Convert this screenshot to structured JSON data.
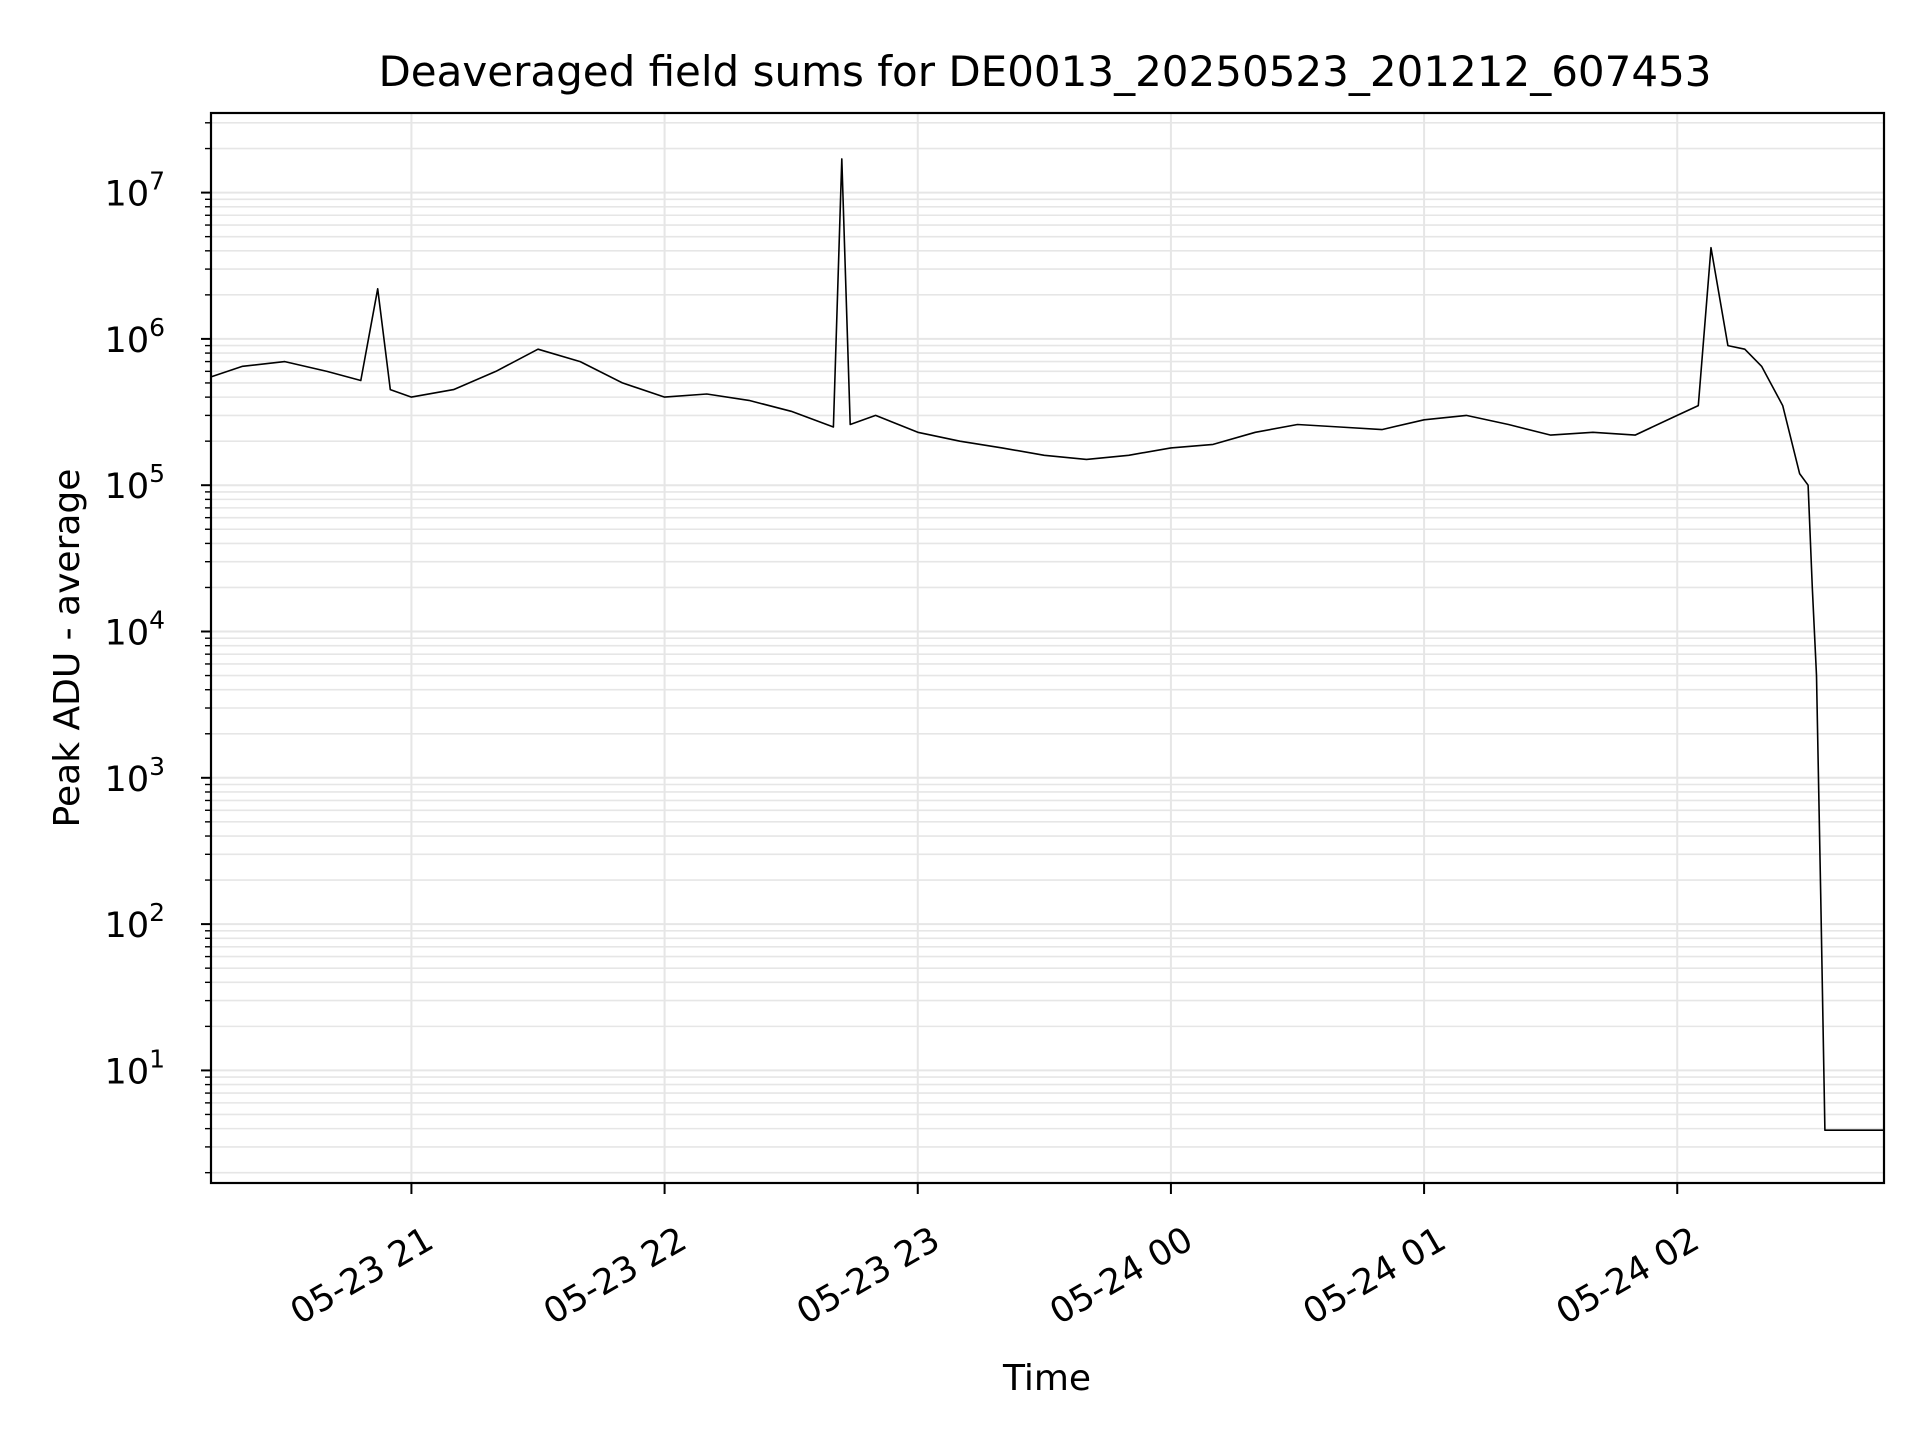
{
  "chart_data": {
    "type": "line",
    "title": "Deaveraged field sums for DE0013_20250523_201212_607453",
    "xlabel": "Time",
    "ylabel": "Peak ADU - average",
    "yscale": "log",
    "ylim": [
      1.7,
      35000000
    ],
    "xlim": [
      "2025-05-23 20:12:30",
      "2025-05-24 02:49:00"
    ],
    "x_ticks": [
      {
        "value": "2025-05-23 21:00",
        "label": "05-23 21"
      },
      {
        "value": "2025-05-23 22:00",
        "label": "05-23 22"
      },
      {
        "value": "2025-05-23 23:00",
        "label": "05-23 23"
      },
      {
        "value": "2025-05-24 00:00",
        "label": "05-24 00"
      },
      {
        "value": "2025-05-24 01:00",
        "label": "05-24 01"
      },
      {
        "value": "2025-05-24 02:00",
        "label": "05-24 02"
      }
    ],
    "y_ticks": [
      {
        "value": 10,
        "base": "10",
        "exp": "1"
      },
      {
        "value": 100,
        "base": "10",
        "exp": "2"
      },
      {
        "value": 1000,
        "base": "10",
        "exp": "3"
      },
      {
        "value": 10000,
        "base": "10",
        "exp": "4"
      },
      {
        "value": 100000,
        "base": "10",
        "exp": "5"
      },
      {
        "value": 1000000,
        "base": "10",
        "exp": "6"
      },
      {
        "value": 10000000,
        "base": "10",
        "exp": "7"
      }
    ],
    "grid": true,
    "line_color": "#000000",
    "grid_color": "#e6e6e6",
    "series": [
      {
        "x": [
          "2025-05-23 20:12:30",
          "2025-05-23 20:20",
          "2025-05-23 20:30",
          "2025-05-23 20:40",
          "2025-05-23 20:48",
          "2025-05-23 20:52",
          "2025-05-23 20:55",
          "2025-05-23 21:00",
          "2025-05-23 21:10",
          "2025-05-23 21:20",
          "2025-05-23 21:30",
          "2025-05-23 21:40",
          "2025-05-23 21:50",
          "2025-05-23 22:00",
          "2025-05-23 22:10",
          "2025-05-23 22:20",
          "2025-05-23 22:30",
          "2025-05-23 22:40",
          "2025-05-23 22:42",
          "2025-05-23 22:44",
          "2025-05-23 22:50",
          "2025-05-23 23:00",
          "2025-05-23 23:10",
          "2025-05-23 23:20",
          "2025-05-23 23:30",
          "2025-05-23 23:40",
          "2025-05-23 23:50",
          "2025-05-24 00:00",
          "2025-05-24 00:10",
          "2025-05-24 00:20",
          "2025-05-24 00:30",
          "2025-05-24 00:40",
          "2025-05-24 00:50",
          "2025-05-24 01:00",
          "2025-05-24 01:10",
          "2025-05-24 01:20",
          "2025-05-24 01:30",
          "2025-05-24 01:40",
          "2025-05-24 01:50",
          "2025-05-24 02:00",
          "2025-05-24 02:05",
          "2025-05-24 02:08",
          "2025-05-24 02:12",
          "2025-05-24 02:16",
          "2025-05-24 02:20",
          "2025-05-24 02:25",
          "2025-05-24 02:29",
          "2025-05-24 02:31",
          "2025-05-24 02:32",
          "2025-05-24 02:33",
          "2025-05-24 02:34",
          "2025-05-24 02:35",
          "2025-05-24 02:49"
        ],
        "y": [
          550000,
          650000,
          700000,
          600000,
          520000,
          2200000,
          450000,
          400000,
          450000,
          600000,
          850000,
          700000,
          500000,
          400000,
          420000,
          380000,
          320000,
          250000,
          17000000,
          260000,
          300000,
          230000,
          200000,
          180000,
          160000,
          150000,
          160000,
          180000,
          190000,
          230000,
          260000,
          250000,
          240000,
          280000,
          300000,
          260000,
          220000,
          230000,
          220000,
          300000,
          350000,
          4200000,
          900000,
          850000,
          650000,
          350000,
          120000,
          100000,
          20000,
          5000,
          160,
          3.9,
          3.9
        ]
      }
    ]
  }
}
